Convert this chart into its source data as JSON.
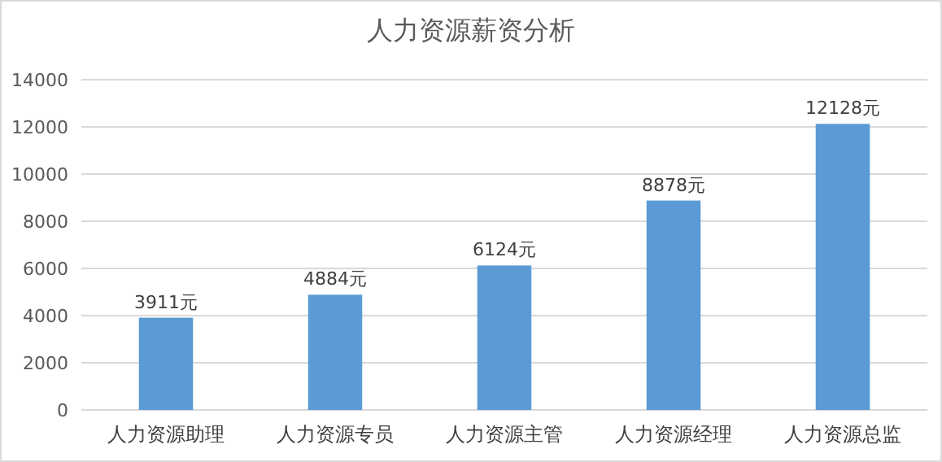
{
  "chart_data": {
    "type": "bar",
    "title": "人力资源薪资分析",
    "categories": [
      "人力资源助理",
      "人力资源专员",
      "人力资源主管",
      "人力资源经理",
      "人力资源总监"
    ],
    "values": [
      3911,
      4884,
      6124,
      8878,
      12128
    ],
    "value_labels": [
      "3911元",
      "4884元",
      "6124元",
      "8878元",
      "12128元"
    ],
    "color": "#5b9bd5",
    "ylim": [
      0,
      14000
    ],
    "yticks": [
      0,
      2000,
      4000,
      6000,
      8000,
      10000,
      12000,
      14000
    ],
    "grid": "y"
  }
}
